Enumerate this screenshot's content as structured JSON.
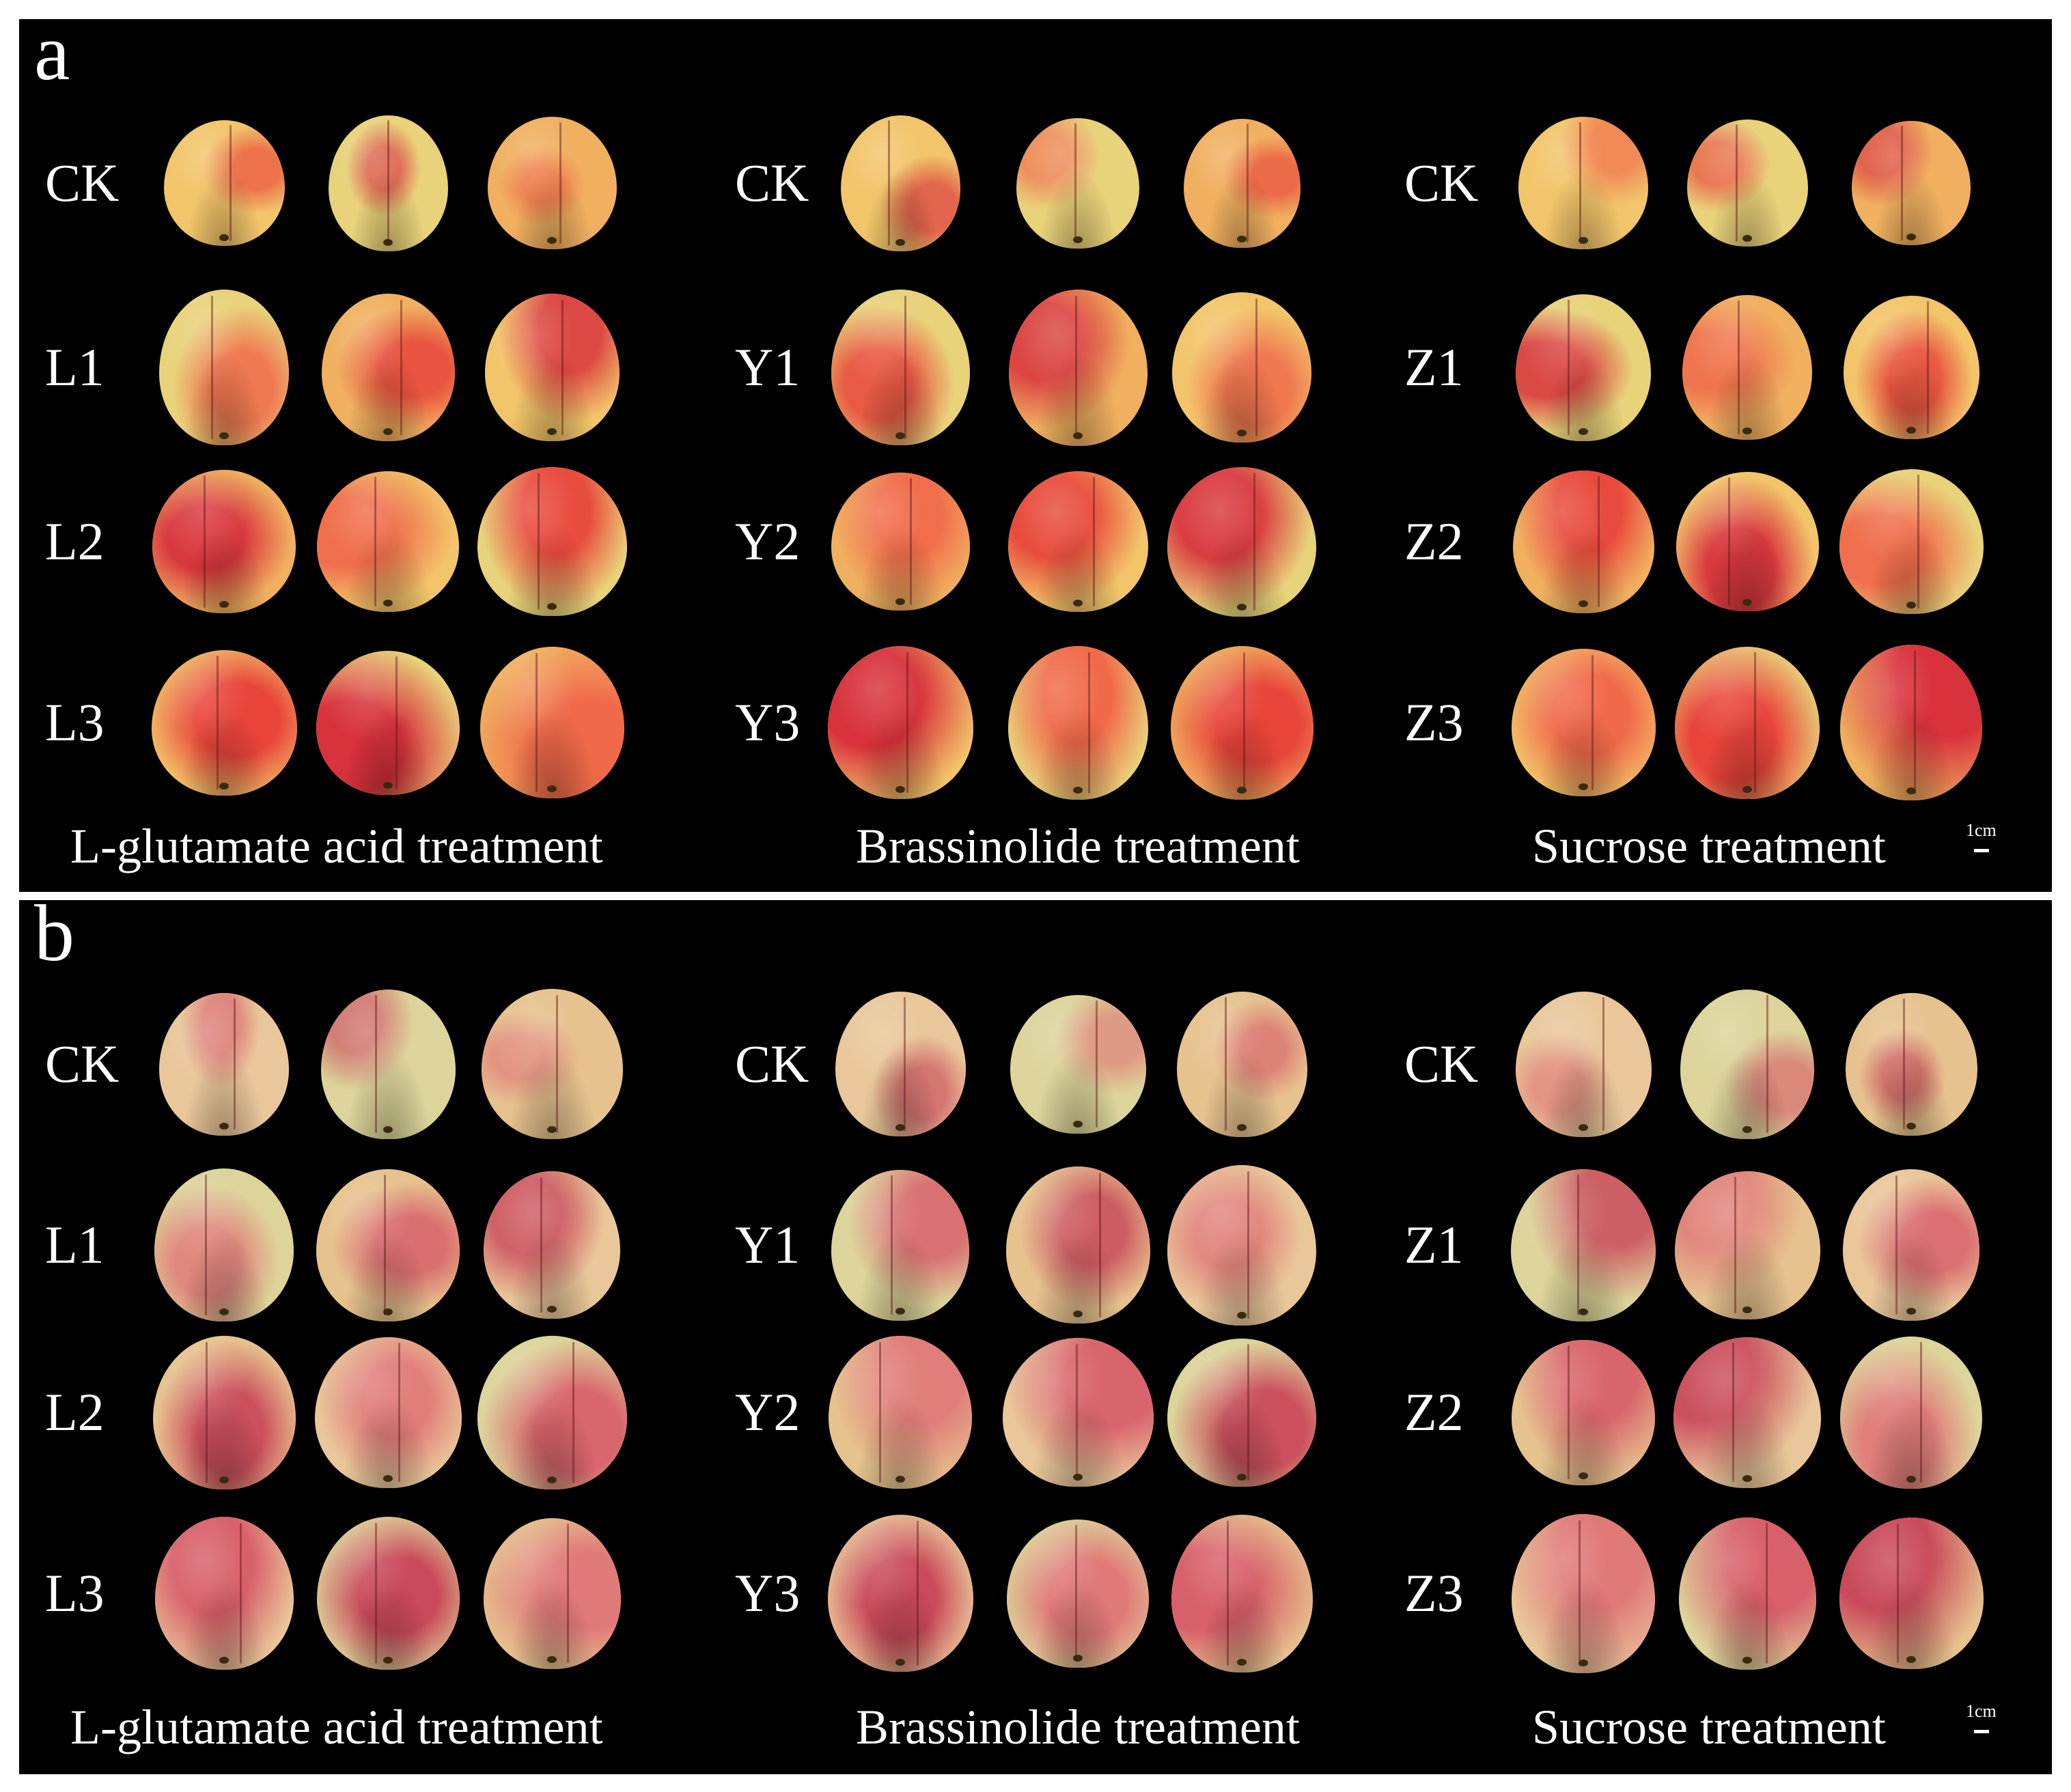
{
  "panels": [
    {
      "letter": "a",
      "palette": "fresh",
      "groups": [
        {
          "caption": "L-glutamate acid treatment",
          "rows": [
            "CK",
            "L1",
            "L2",
            "L3"
          ]
        },
        {
          "caption": "Brassinolide treatment",
          "rows": [
            "CK",
            "Y1",
            "Y2",
            "Y3"
          ]
        },
        {
          "caption": "Sucrose treatment",
          "rows": [
            "CK",
            "Z1",
            "Z2",
            "Z3"
          ]
        }
      ],
      "scale_label": "1cm"
    },
    {
      "letter": "b",
      "palette": "stored",
      "groups": [
        {
          "caption": "L-glutamate acid treatment",
          "rows": [
            "CK",
            "L1",
            "L2",
            "L3"
          ]
        },
        {
          "caption": "Brassinolide treatment",
          "rows": [
            "CK",
            "Y1",
            "Y2",
            "Y3"
          ]
        },
        {
          "caption": "Sucrose treatment",
          "rows": [
            "CK",
            "Z1",
            "Z2",
            "Z3"
          ]
        }
      ],
      "scale_label": "1cm"
    }
  ],
  "colors": {
    "background": "#000000",
    "text": "#ffffff",
    "fresh": {
      "base": [
        "#f2c56a",
        "#e8d27a",
        "#f0b060"
      ],
      "blush": [
        "#e8453a",
        "#d8323c",
        "#f06a4a"
      ]
    },
    "stored": {
      "base": [
        "#e9c79a",
        "#dcd49a",
        "#e6c28e"
      ],
      "blush": [
        "#d8606a",
        "#c94a5a",
        "#e07a78"
      ]
    }
  }
}
